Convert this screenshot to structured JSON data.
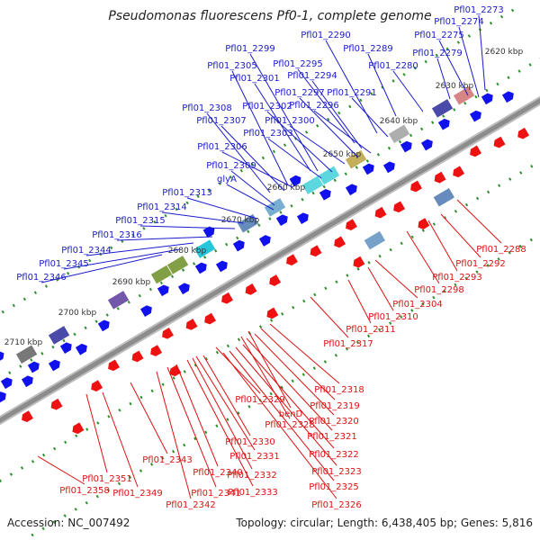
{
  "title": "Pseudomonas fluorescens Pf0-1, complete genome",
  "footer": {
    "accession": "Accession: NC_007492",
    "summary": "Topology: circular; Length: 6,438,405 bp; Genes: 5,816"
  },
  "colors": {
    "forward_label": "#1a1acc",
    "reverse_label": "#dd1111",
    "backbone": "#8c8c8c",
    "tick_green": "#2f8f2f"
  },
  "kbp_ticks": [
    "2620 kbp",
    "2630 kbp",
    "2640 kbp",
    "2650 kbp",
    "2660 kbp",
    "2670 kbp",
    "2680 kbp",
    "2690 kbp",
    "2700 kbp",
    "2710 kbp"
  ],
  "forward_genes": [
    "Pfl01_2273",
    "Pfl01_2274",
    "Pfl01_2275",
    "Pfl01_2279",
    "Pfl01_2280",
    "Pfl01_2289",
    "Pfl01_2290",
    "Pfl01_2291",
    "Pfl01_2294",
    "Pfl01_2295",
    "Pfl01_2296",
    "Pfl01_2297",
    "Pfl01_2299",
    "Pfl01_2300",
    "Pfl01_2301",
    "Pfl01_2302",
    "Pfl01_2303",
    "Pfl01_2305",
    "Pfl01_2306",
    "Pfl01_2307",
    "Pfl01_2308",
    "Pfl01_2309",
    "glyA",
    "Pfl01_2313",
    "Pfl01_2314",
    "Pfl01_2315",
    "Pfl01_2316",
    "Pfl01_2344",
    "Pfl01_2345",
    "Pfl01_2346"
  ],
  "reverse_genes": [
    "Pfl01_2288",
    "Pfl01_2292",
    "Pfl01_2293",
    "Pfl01_2298",
    "Pfl01_2304",
    "Pfl01_2310",
    "Pfl01_2311",
    "Pfl01_2317",
    "Pfl01_2318",
    "Pfl01_2319",
    "benD",
    "Pfl01_2320",
    "Pfl01_2328",
    "Pfl01_2329",
    "Pfl01_2321",
    "Pfl01_2322",
    "Pfl01_2323",
    "Pfl01_2330",
    "Pfl01_2331",
    "Pfl01_2325",
    "Pfl01_2326",
    "Pfl01_2332",
    "Pfl01_2333",
    "Pfl01_2340",
    "Pfl01_2341",
    "Pfl01_2342",
    "Pfl01_2343",
    "Pfl01_2349",
    "Pfl01_2351",
    "Pfl01_2358"
  ]
}
